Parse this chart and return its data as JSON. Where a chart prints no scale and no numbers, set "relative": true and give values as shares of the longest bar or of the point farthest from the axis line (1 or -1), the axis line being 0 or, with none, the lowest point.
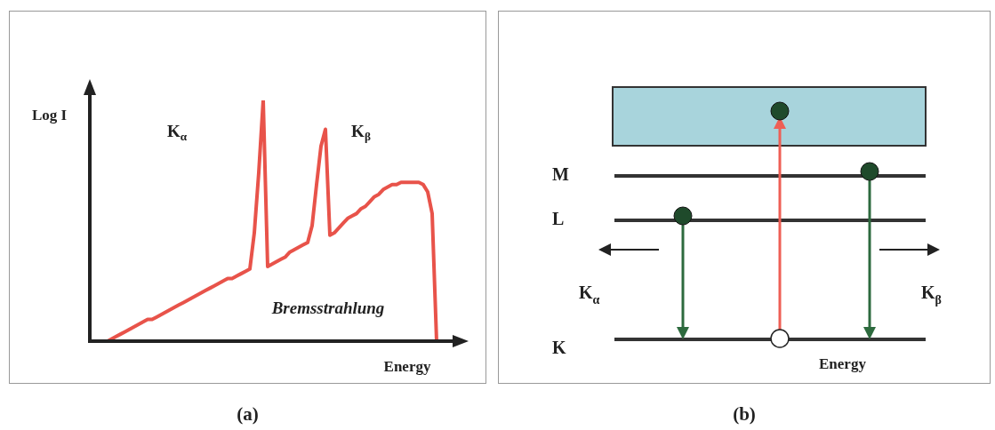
{
  "chart_data": [
    {
      "type": "line",
      "title": "(a)",
      "xlabel": "Energy",
      "ylabel": "Log I",
      "annotations": [
        "K$_{α}$",
        "K$_{β}$",
        "Bremsstrahlung"
      ],
      "relative": true,
      "categories": [
        null,
        null,
        null,
        null,
        null,
        null,
        null,
        null,
        null,
        null,
        null,
        null,
        null,
        null,
        null,
        null,
        null,
        null,
        null,
        null,
        null,
        null,
        null,
        null,
        null,
        null,
        null,
        null,
        null,
        null,
        null,
        null,
        null,
        null,
        null,
        null,
        null,
        null,
        null,
        null,
        null,
        null,
        null,
        null,
        null,
        null,
        null,
        null,
        null,
        null,
        null,
        null,
        null,
        null,
        null,
        null,
        null,
        null,
        null,
        null,
        null,
        null,
        null,
        null,
        null,
        null,
        null,
        null,
        null,
        null,
        null,
        null,
        null,
        null,
        null
      ],
      "series": [
        {
          "color": "#e8534a",
          "values": [
            0,
            0.01,
            0.02,
            0.03,
            0.04,
            0.05,
            0.06,
            0.07,
            0.08,
            0.09,
            0.09,
            0.1,
            0.11,
            0.12,
            0.13,
            0.14,
            0.15,
            0.16,
            0.17,
            0.18,
            0.19,
            0.2,
            0.21,
            0.22,
            0.23,
            0.24,
            0.25,
            0.26,
            0.26,
            0.27,
            0.28,
            0.29,
            0.3,
            0.45,
            0.7,
            1,
            0.31,
            0.32,
            0.33,
            0.34,
            0.35,
            0.37,
            0.38,
            0.39,
            0.4,
            0.41,
            0.48,
            0.65,
            0.81,
            0.88,
            0.44,
            0.45,
            0.47,
            0.49,
            0.51,
            0.52,
            0.53,
            0.55,
            0.56,
            0.58,
            0.6,
            0.61,
            0.63,
            0.64,
            0.65,
            0.65,
            0.66,
            0.66,
            0.66,
            0.66,
            0.66,
            0.65,
            0.62,
            0.53,
            0
          ]
        }
      ]
    },
    {
      "type": "other",
      "title": "(b)",
      "xlabel": "Energy",
      "annotations": [
        "M",
        "L",
        "K",
        "K$_{α}$",
        "K$_{β}$"
      ]
    }
  ]
}
